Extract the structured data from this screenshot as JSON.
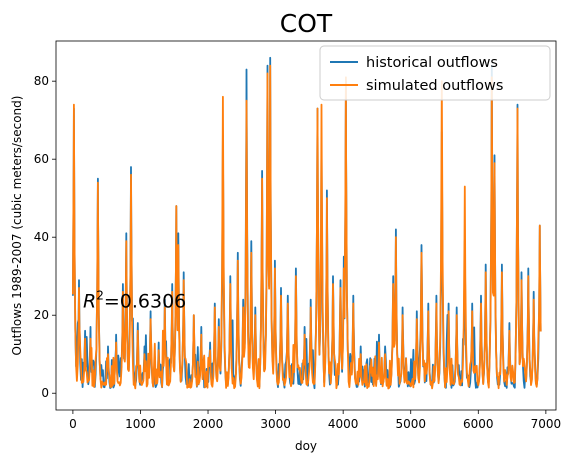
{
  "chart_data": {
    "type": "line",
    "title": "COT",
    "xlabel": "doy",
    "ylabel": "Outflows 1989-2007 (cubic meters/second)",
    "xlim": [
      -250,
      7150
    ],
    "ylim": [
      -4.3,
      90.3
    ],
    "xticks": [
      0,
      1000,
      2000,
      3000,
      4000,
      5000,
      6000,
      7000
    ],
    "yticks": [
      0,
      20,
      40,
      60,
      80
    ],
    "grid": false,
    "legend_position": "top-right",
    "annotation": {
      "prefix": "R",
      "superscript": "2",
      "value_text": "=0.6306",
      "x": 150,
      "y": 24
    },
    "series": [
      {
        "name": "historical outflows",
        "color": "#1f77b4",
        "peaks": [
          [
            15,
            73
          ],
          [
            90,
            29
          ],
          [
            180,
            16
          ],
          [
            260,
            17
          ],
          [
            370,
            55
          ],
          [
            520,
            12
          ],
          [
            640,
            15
          ],
          [
            740,
            28
          ],
          [
            790,
            41
          ],
          [
            860,
            58
          ],
          [
            960,
            18
          ],
          [
            1060,
            12
          ],
          [
            1150,
            21
          ],
          [
            1270,
            13
          ],
          [
            1360,
            24
          ],
          [
            1470,
            28
          ],
          [
            1530,
            48
          ],
          [
            1560,
            41
          ],
          [
            1640,
            31
          ],
          [
            1790,
            20
          ],
          [
            1900,
            17
          ],
          [
            2030,
            13
          ],
          [
            2100,
            23
          ],
          [
            2160,
            19
          ],
          [
            2220,
            66
          ],
          [
            2330,
            30
          ],
          [
            2440,
            36
          ],
          [
            2520,
            24
          ],
          [
            2570,
            83
          ],
          [
            2640,
            39
          ],
          [
            2700,
            22
          ],
          [
            2800,
            57
          ],
          [
            2880,
            84
          ],
          [
            2920,
            86
          ],
          [
            2990,
            34
          ],
          [
            3080,
            27
          ],
          [
            3180,
            25
          ],
          [
            3300,
            32
          ],
          [
            3430,
            17
          ],
          [
            3520,
            24
          ],
          [
            3620,
            73
          ],
          [
            3680,
            66
          ],
          [
            3760,
            52
          ],
          [
            3850,
            30
          ],
          [
            3960,
            29
          ],
          [
            4010,
            35
          ],
          [
            4040,
            80
          ],
          [
            4150,
            25
          ],
          [
            4260,
            12
          ],
          [
            4400,
            9
          ],
          [
            4530,
            15
          ],
          [
            4620,
            12
          ],
          [
            4740,
            30
          ],
          [
            4780,
            42
          ],
          [
            4880,
            22
          ],
          [
            4930,
            9
          ],
          [
            5090,
            21
          ],
          [
            5160,
            38
          ],
          [
            5260,
            23
          ],
          [
            5380,
            25
          ],
          [
            5460,
            67
          ],
          [
            5560,
            23
          ],
          [
            5680,
            22
          ],
          [
            5800,
            39
          ],
          [
            5910,
            23
          ],
          [
            6040,
            25
          ],
          [
            6110,
            33
          ],
          [
            6200,
            84
          ],
          [
            6240,
            61
          ],
          [
            6350,
            33
          ],
          [
            6460,
            18
          ],
          [
            6580,
            74
          ],
          [
            6640,
            31
          ],
          [
            6740,
            32
          ],
          [
            6820,
            26
          ],
          [
            6910,
            43
          ]
        ]
      },
      {
        "name": "simulated outflows",
        "color": "#ff7f0e",
        "peaks": [
          [
            15,
            74
          ],
          [
            90,
            27
          ],
          [
            180,
            14
          ],
          [
            260,
            14
          ],
          [
            370,
            54
          ],
          [
            520,
            10
          ],
          [
            640,
            13
          ],
          [
            740,
            26
          ],
          [
            790,
            39
          ],
          [
            860,
            56
          ],
          [
            960,
            16
          ],
          [
            1060,
            10
          ],
          [
            1150,
            19
          ],
          [
            1270,
            11
          ],
          [
            1360,
            22
          ],
          [
            1470,
            26
          ],
          [
            1530,
            48
          ],
          [
            1560,
            38
          ],
          [
            1640,
            29
          ],
          [
            1790,
            20
          ],
          [
            1900,
            15
          ],
          [
            2030,
            11
          ],
          [
            2100,
            22
          ],
          [
            2160,
            17
          ],
          [
            2220,
            76
          ],
          [
            2330,
            28
          ],
          [
            2440,
            34
          ],
          [
            2520,
            22
          ],
          [
            2570,
            75
          ],
          [
            2640,
            36
          ],
          [
            2700,
            20
          ],
          [
            2800,
            55
          ],
          [
            2880,
            82
          ],
          [
            2920,
            84
          ],
          [
            2990,
            32
          ],
          [
            3080,
            25
          ],
          [
            3180,
            23
          ],
          [
            3300,
            30
          ],
          [
            3430,
            15
          ],
          [
            3520,
            22
          ],
          [
            3620,
            73
          ],
          [
            3680,
            74
          ],
          [
            3760,
            50
          ],
          [
            3850,
            28
          ],
          [
            3960,
            27
          ],
          [
            4010,
            32
          ],
          [
            4040,
            81
          ],
          [
            4150,
            23
          ],
          [
            4260,
            10
          ],
          [
            4400,
            7
          ],
          [
            4530,
            13
          ],
          [
            4620,
            10
          ],
          [
            4740,
            28
          ],
          [
            4780,
            40
          ],
          [
            4880,
            20
          ],
          [
            4930,
            7
          ],
          [
            5090,
            19
          ],
          [
            5160,
            36
          ],
          [
            5260,
            21
          ],
          [
            5380,
            23
          ],
          [
            5460,
            80
          ],
          [
            5560,
            21
          ],
          [
            5680,
            20
          ],
          [
            5800,
            53
          ],
          [
            5910,
            21
          ],
          [
            6040,
            23
          ],
          [
            6110,
            31
          ],
          [
            6200,
            81
          ],
          [
            6240,
            59
          ],
          [
            6350,
            31
          ],
          [
            6460,
            16
          ],
          [
            6580,
            73
          ],
          [
            6640,
            29
          ],
          [
            6740,
            30
          ],
          [
            6820,
            24
          ],
          [
            6910,
            43
          ]
        ]
      }
    ]
  }
}
